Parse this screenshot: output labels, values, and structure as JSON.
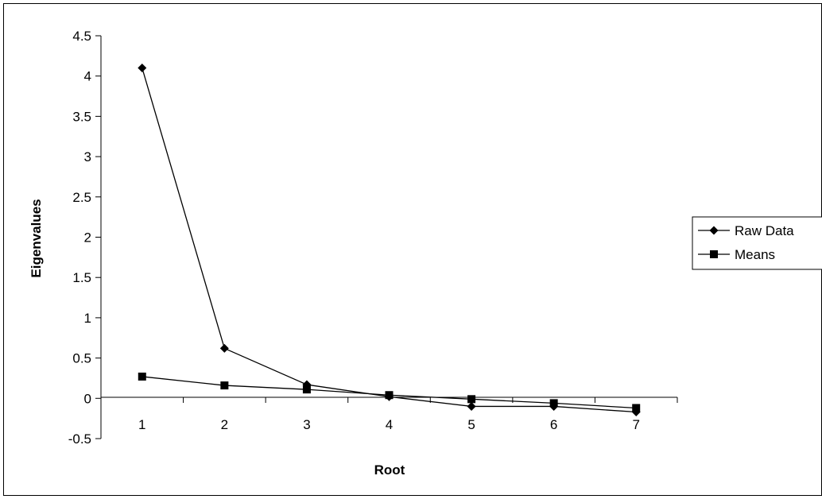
{
  "chart_data": {
    "type": "line",
    "title": "",
    "xlabel": "Root",
    "ylabel": "Eigenvalues",
    "categories": [
      "1",
      "2",
      "3",
      "4",
      "5",
      "6",
      "7"
    ],
    "ylim": [
      -0.5,
      4.5
    ],
    "yticks": [
      "-0.5",
      "0",
      "0.5",
      "1",
      "1.5",
      "2",
      "2.5",
      "3",
      "3.5",
      "4",
      "4.5"
    ],
    "grid": false,
    "legend_position": "right",
    "series": [
      {
        "name": "Raw Data",
        "marker": "diamond",
        "color": "#000000",
        "values": [
          4.1,
          0.62,
          0.17,
          0.02,
          -0.1,
          -0.1,
          -0.17
        ]
      },
      {
        "name": "Means",
        "marker": "square",
        "color": "#000000",
        "values": [
          0.27,
          0.16,
          0.11,
          0.04,
          -0.01,
          -0.06,
          -0.12
        ]
      }
    ]
  }
}
